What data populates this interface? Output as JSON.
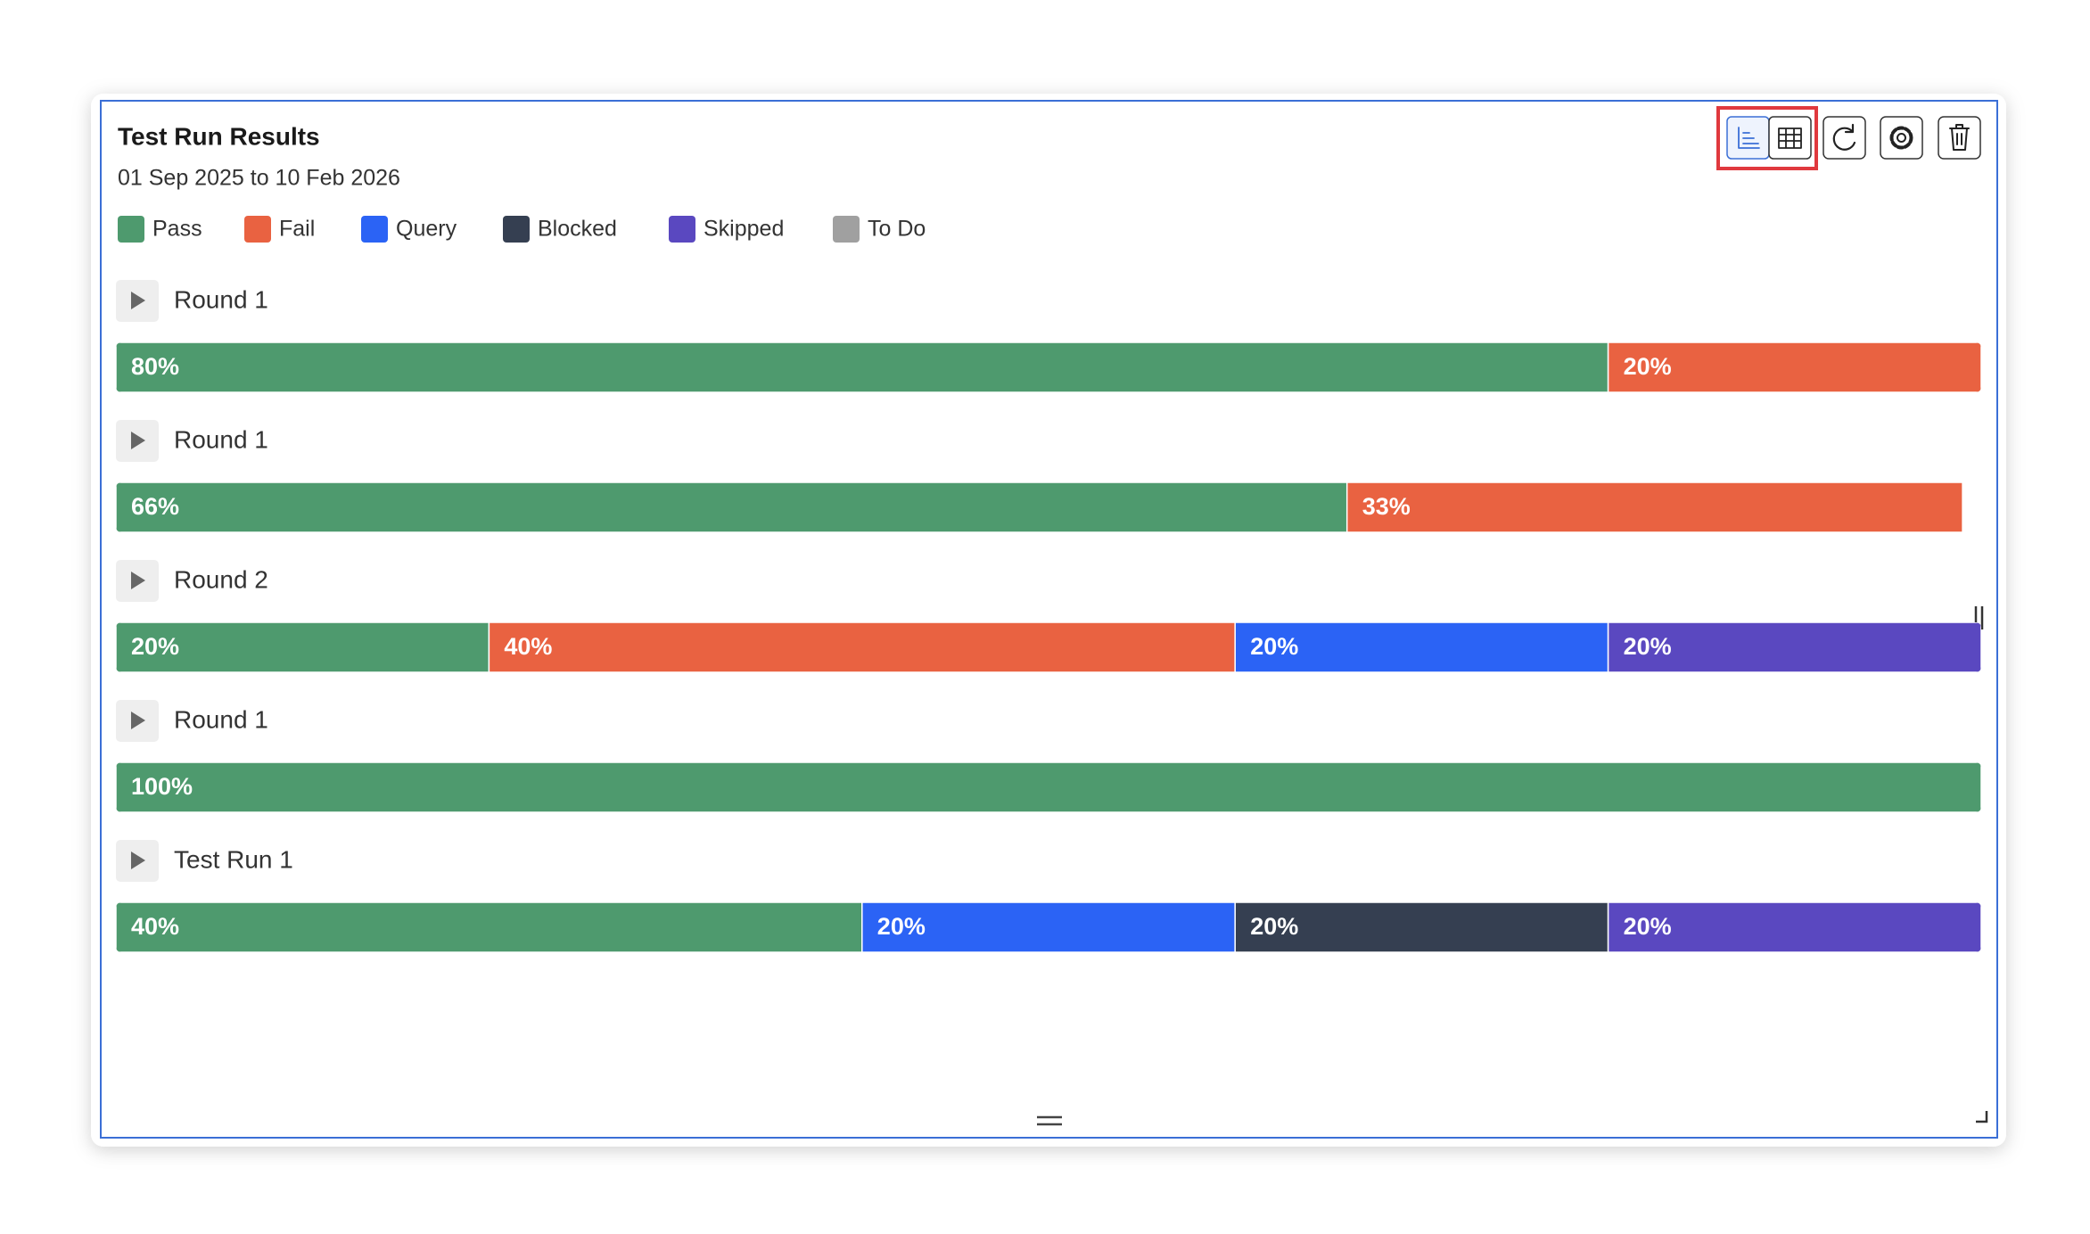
{
  "chart_data": {
    "type": "stacked-bar",
    "title": "Test Run Results",
    "subtitle": "01 Sep 2025 to 10 Feb 2026",
    "categories": [
      "Round 1",
      "Round 1",
      "Round 2",
      "Round 1",
      "Test Run 1"
    ],
    "xlim": [
      0,
      100
    ],
    "series": [
      {
        "name": "Pass",
        "color": "#4e9a6e",
        "values": [
          80,
          66,
          20,
          100,
          40
        ],
        "value_labels": [
          "80%",
          "66%",
          "20%",
          "100%",
          "40%"
        ]
      },
      {
        "name": "Fail",
        "color": "#e96241",
        "values": [
          20,
          33,
          40,
          null,
          null
        ],
        "value_labels": [
          "20%",
          "33%",
          "40%",
          null,
          null
        ]
      },
      {
        "name": "Query",
        "color": "#2b63f5",
        "values": [
          null,
          null,
          20,
          null,
          20
        ],
        "value_labels": [
          null,
          null,
          "20%",
          null,
          "20%"
        ]
      },
      {
        "name": "Blocked",
        "color": "#353f51",
        "values": [
          null,
          null,
          null,
          null,
          20
        ],
        "value_labels": [
          null,
          null,
          null,
          null,
          "20%"
        ]
      },
      {
        "name": "Skipped",
        "color": "#5a48c0",
        "values": [
          null,
          null,
          20,
          null,
          20
        ],
        "value_labels": [
          null,
          null,
          "20%",
          null,
          "20%"
        ]
      },
      {
        "name": "To Do",
        "color": "#a0a0a0",
        "values": [
          null,
          null,
          null,
          null,
          null
        ],
        "value_labels": [
          null,
          null,
          null,
          null,
          null
        ]
      }
    ]
  }
}
